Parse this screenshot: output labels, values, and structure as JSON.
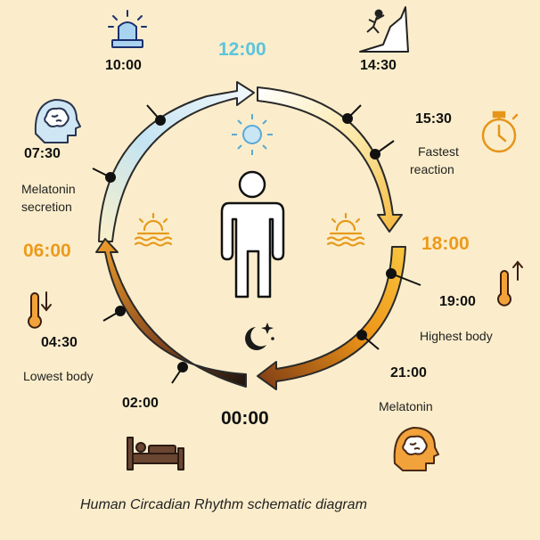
{
  "diagram": {
    "caption": "Human Circadian Rhythm schematic diagram",
    "quadrants": [
      {
        "label": "12:00",
        "color": "#5bc4dd"
      },
      {
        "label": "18:00",
        "color": "#ec9a1c"
      },
      {
        "label": "00:00",
        "color": "#111111"
      },
      {
        "label": "06:00",
        "color": "#ec9a1c"
      }
    ],
    "markers": [
      {
        "time": "10:00"
      },
      {
        "time": "07:30",
        "note_lines": [
          "Melatonin",
          "secretion"
        ]
      },
      {
        "time": "04:30",
        "note_lines": [
          "Lowest body"
        ]
      },
      {
        "time": "02:00"
      },
      {
        "time": "14:30"
      },
      {
        "time": "15:30",
        "note_lines": [
          "Fastest",
          "reaction"
        ]
      },
      {
        "time": "19:00",
        "note_lines": [
          "Highest body"
        ]
      },
      {
        "time": "21:00",
        "note_lines": [
          "Melatonin"
        ]
      }
    ],
    "icons": [
      "alarm-light-icon",
      "climber-icon",
      "stopwatch-icon",
      "brain-head-icon",
      "thermometer-up-icon",
      "thermometer-down-icon",
      "bed-icon",
      "sun-icon",
      "moon-stars-icon",
      "sunrise-icon",
      "sunset-icon",
      "person-icon"
    ],
    "colors": {
      "background": "#fbedcb",
      "day_blue": "#bfe3f3",
      "afternoon_yellow": "#f6c64a",
      "evening_orange": "#ef9a17",
      "night_dark": "#1e1611",
      "icon_orange": "#f0a02a",
      "icon_outline": "#3a2a20"
    }
  }
}
